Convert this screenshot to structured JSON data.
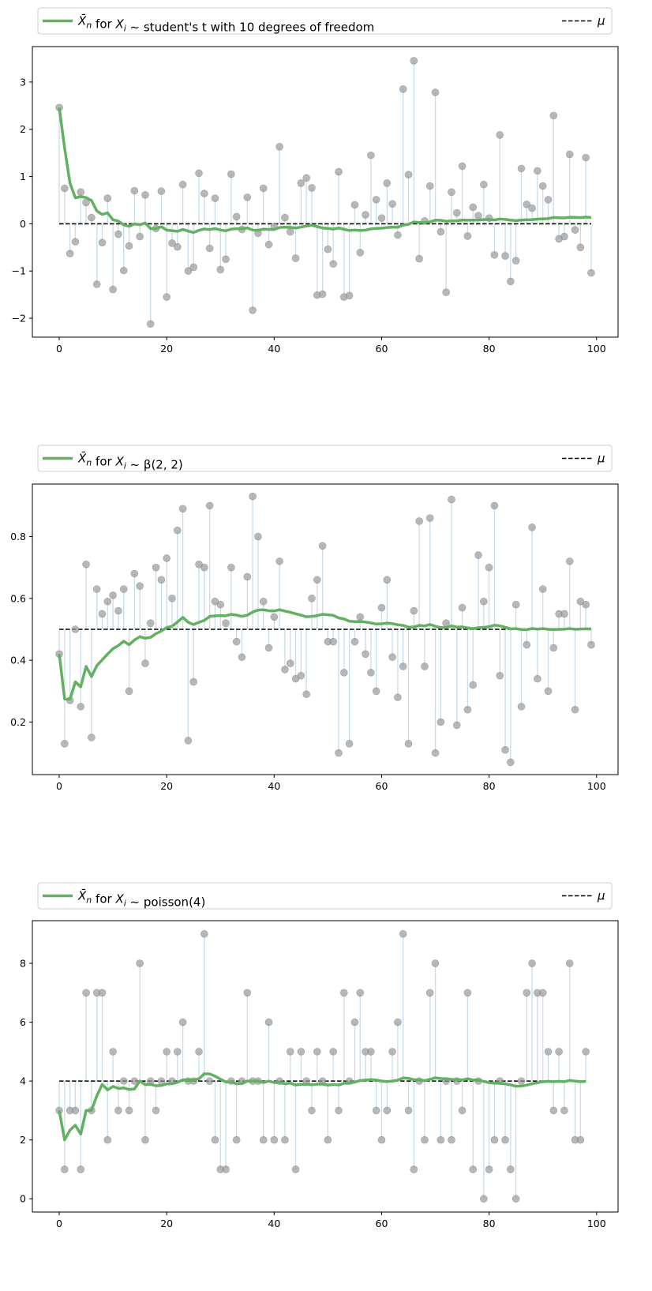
{
  "chart_data": [
    {
      "type": "line",
      "legend": {
        "placement": "top",
        "entries": [
          {
            "series": "running_mean",
            "label_prefix": "X̄",
            "label_sub": "n",
            "label_mid": " for ",
            "label_var": "X",
            "label_var_sub": "i",
            "label_rest": " ~ student's t with 10 degrees of freedom"
          },
          {
            "series": "mu",
            "label_var": "μ"
          }
        ]
      },
      "xlim": [
        -5,
        104
      ],
      "ylim": [
        -2.4,
        3.75
      ],
      "xticks": [
        0,
        20,
        40,
        60,
        80,
        100
      ],
      "yticks": [
        -2,
        -1,
        0,
        1,
        2,
        3
      ],
      "mu": 0,
      "samples": [
        2.46,
        0.75,
        -0.63,
        -0.38,
        0.67,
        0.45,
        0.13,
        -1.28,
        -0.4,
        0.54,
        -1.39,
        -0.22,
        -0.99,
        -0.47,
        0.7,
        -0.27,
        0.61,
        -2.12,
        -0.1,
        0.69,
        -1.55,
        -0.41,
        -0.49,
        0.83,
        -1.0,
        -0.92,
        1.07,
        0.64,
        -0.52,
        0.54,
        -0.97,
        -0.75,
        1.05,
        0.15,
        -0.12,
        0.56,
        -1.83,
        -0.2,
        0.75,
        -0.44,
        -0.06,
        1.63,
        0.13,
        -0.17,
        -0.73,
        0.86,
        0.97,
        0.76,
        -1.51,
        -1.49,
        -0.54,
        -0.85,
        1.1,
        -1.55,
        -1.52,
        0.4,
        -0.61,
        0.19,
        1.45,
        0.51,
        0.12,
        0.86,
        0.42,
        -0.24,
        2.85,
        1.04,
        3.45,
        -0.74,
        0.06,
        0.8,
        2.78,
        -0.17,
        -1.45,
        0.67,
        0.23,
        1.22,
        -0.26,
        0.35,
        0.17,
        0.83,
        0.12,
        -0.66,
        1.88,
        -0.68,
        -1.22,
        -0.78,
        1.17,
        0.41,
        0.33,
        1.12,
        0.8,
        0.51,
        2.29,
        -0.32,
        -0.27,
        1.47,
        -0.13,
        -0.5,
        1.4,
        -1.04
      ]
    },
    {
      "type": "line",
      "legend": {
        "placement": "top",
        "entries": [
          {
            "series": "running_mean",
            "label_prefix": "X̄",
            "label_sub": "n",
            "label_mid": " for ",
            "label_var": "X",
            "label_var_sub": "i",
            "label_rest": " ~ β(2, 2)"
          },
          {
            "series": "mu",
            "label_var": "μ"
          }
        ]
      },
      "xlim": [
        -5,
        104
      ],
      "ylim": [
        0.03,
        0.97
      ],
      "xticks": [
        0,
        20,
        40,
        60,
        80,
        100
      ],
      "yticks": [
        0.2,
        0.4,
        0.6,
        0.8
      ],
      "mu": 0.5,
      "samples": [
        0.42,
        0.13,
        0.27,
        0.5,
        0.25,
        0.71,
        0.15,
        0.63,
        0.55,
        0.59,
        0.61,
        0.56,
        0.63,
        0.3,
        0.68,
        0.64,
        0.39,
        0.52,
        0.7,
        0.66,
        0.73,
        0.6,
        0.82,
        0.89,
        0.14,
        0.33,
        0.71,
        0.7,
        0.9,
        0.59,
        0.58,
        0.52,
        0.7,
        0.46,
        0.41,
        0.67,
        0.93,
        0.8,
        0.59,
        0.44,
        0.54,
        0.72,
        0.37,
        0.39,
        0.34,
        0.35,
        0.29,
        0.6,
        0.66,
        0.77,
        0.46,
        0.46,
        0.1,
        0.36,
        0.13,
        0.46,
        0.54,
        0.42,
        0.36,
        0.3,
        0.57,
        0.66,
        0.41,
        0.28,
        0.38,
        0.13,
        0.56,
        0.85,
        0.38,
        0.86,
        0.1,
        0.2,
        0.52,
        0.92,
        0.19,
        0.57,
        0.24,
        0.32,
        0.74,
        0.59,
        0.7,
        0.9,
        0.35,
        0.11,
        0.07,
        0.58,
        0.25,
        0.45,
        0.83,
        0.34,
        0.63,
        0.3,
        0.44,
        0.55,
        0.55,
        0.72,
        0.24,
        0.59,
        0.58,
        0.45
      ]
    },
    {
      "type": "line",
      "legend": {
        "placement": "top",
        "entries": [
          {
            "series": "running_mean",
            "label_prefix": "X̄",
            "label_sub": "n",
            "label_mid": " for ",
            "label_var": "X",
            "label_var_sub": "i",
            "label_rest": " ~ poisson(4)"
          },
          {
            "series": "mu",
            "label_var": "μ"
          }
        ]
      },
      "xlim": [
        -5,
        104
      ],
      "ylim": [
        -0.45,
        9.45
      ],
      "xticks": [
        0,
        20,
        40,
        60,
        80,
        100
      ],
      "yticks": [
        0,
        2,
        4,
        6,
        8
      ],
      "mu": 4,
      "samples": [
        3,
        1,
        3,
        3,
        1,
        7,
        3,
        7,
        7,
        2,
        5,
        3,
        4,
        3,
        4,
        8,
        2,
        4,
        3,
        4,
        5,
        4,
        5,
        6,
        4,
        4,
        5,
        9,
        4,
        2,
        1,
        1,
        4,
        2,
        4,
        7,
        4,
        4,
        2,
        6,
        2,
        4,
        2,
        5,
        1,
        5,
        4,
        3,
        5,
        4,
        2,
        5,
        3,
        7,
        4,
        6,
        7,
        5,
        5,
        3,
        2,
        3,
        5,
        6,
        9,
        3,
        1,
        4,
        2,
        7,
        8,
        2,
        4,
        2,
        4,
        3,
        7,
        1,
        4,
        0,
        1,
        2,
        4,
        2,
        1,
        0,
        4,
        7,
        8,
        7,
        7,
        5,
        3,
        5,
        3,
        8,
        2,
        2,
        5
      ]
    }
  ]
}
